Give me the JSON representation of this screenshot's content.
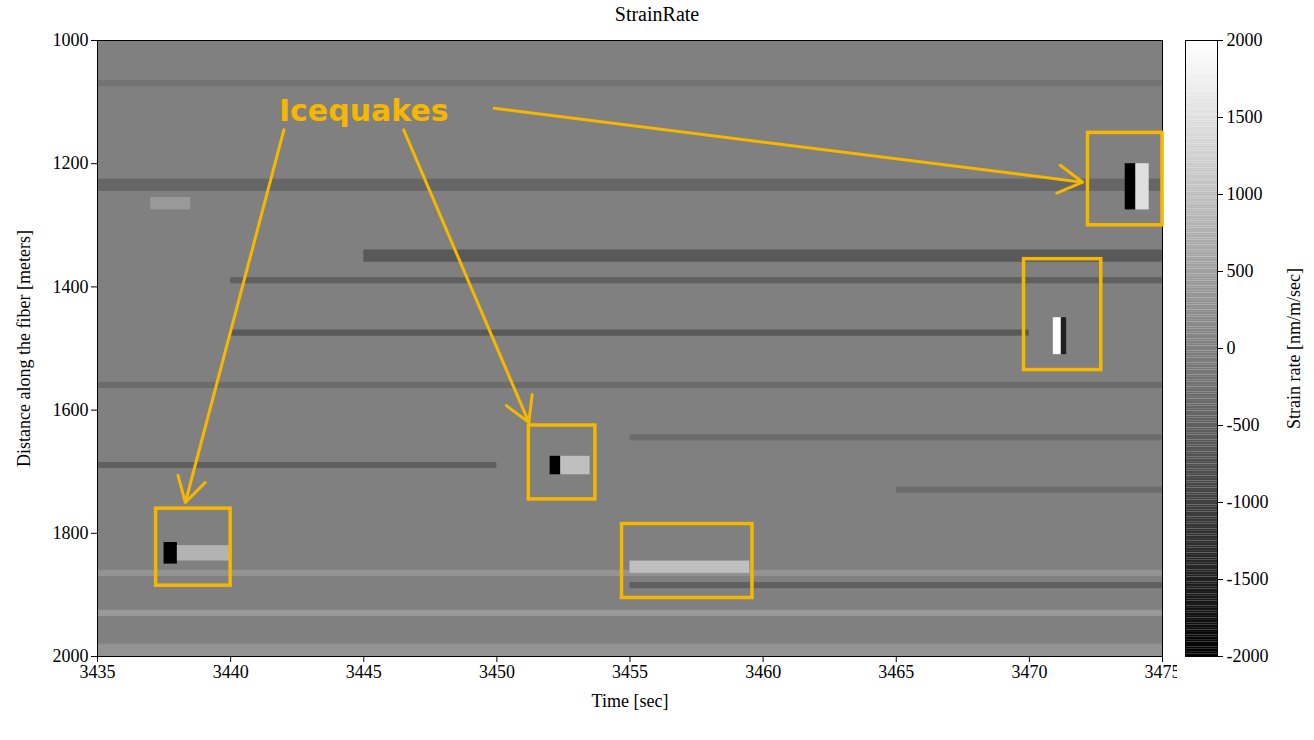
{
  "chart_data": {
    "type": "heatmap",
    "title": "StrainRate",
    "xlabel": "Time [sec]",
    "ylabel": "Distance along the fiber [meters]",
    "xlim": [
      3435,
      3475
    ],
    "xticks": [
      3435,
      3440,
      3445,
      3450,
      3455,
      3460,
      3465,
      3470,
      3475
    ],
    "ylim": [
      2000,
      1000
    ],
    "yticks": [
      1000,
      1200,
      1400,
      1600,
      1800,
      2000
    ],
    "colorbar": {
      "label": "Strain rate [nm/m/sec]",
      "range": [
        -2000,
        2000
      ],
      "ticks": [
        -2000,
        -1500,
        -1000,
        -500,
        0,
        500,
        1000,
        1500,
        2000
      ]
    },
    "cells": [
      {
        "x": [
          3435,
          3475
        ],
        "y": [
          1000,
          2000
        ],
        "value": 0
      },
      {
        "x": [
          3435,
          3475
        ],
        "y": [
          1065,
          1075
        ],
        "value": -200
      },
      {
        "x": [
          3435,
          3475
        ],
        "y": [
          1225,
          1245
        ],
        "value": -400
      },
      {
        "x": [
          3437,
          3438.5
        ],
        "y": [
          1255,
          1275
        ],
        "value": 400
      },
      {
        "x": [
          3445,
          3475
        ],
        "y": [
          1340,
          1360
        ],
        "value": -600
      },
      {
        "x": [
          3440,
          3475
        ],
        "y": [
          1385,
          1395
        ],
        "value": -500
      },
      {
        "x": [
          3440,
          3470
        ],
        "y": [
          1470,
          1480
        ],
        "value": -600
      },
      {
        "x": [
          3435,
          3475
        ],
        "y": [
          1555,
          1565
        ],
        "value": -300
      },
      {
        "x": [
          3455,
          3475
        ],
        "y": [
          1640,
          1650
        ],
        "value": -300
      },
      {
        "x": [
          3435,
          3450
        ],
        "y": [
          1685,
          1695
        ],
        "value": -500
      },
      {
        "x": [
          3465,
          3475
        ],
        "y": [
          1725,
          1735
        ],
        "value": -300
      },
      {
        "x": [
          3435,
          3475
        ],
        "y": [
          1860,
          1870
        ],
        "value": 300
      },
      {
        "x": [
          3455,
          3475
        ],
        "y": [
          1880,
          1890
        ],
        "value": -500
      },
      {
        "x": [
          3435,
          3475
        ],
        "y": [
          1925,
          1935
        ],
        "value": 400
      },
      {
        "x": [
          3435,
          3475
        ],
        "y": [
          1980,
          2000
        ],
        "value": 300
      },
      {
        "x": [
          3437.5,
          3438
        ],
        "y": [
          1815,
          1850
        ],
        "value": -2000
      },
      {
        "x": [
          3438,
          3440
        ],
        "y": [
          1820,
          1845
        ],
        "value": 800
      },
      {
        "x": [
          3452,
          3452.4
        ],
        "y": [
          1675,
          1705
        ],
        "value": -2000
      },
      {
        "x": [
          3452.4,
          3453.5
        ],
        "y": [
          1675,
          1705
        ],
        "value": 1000
      },
      {
        "x": [
          3455,
          3459.5
        ],
        "y": [
          1845,
          1865
        ],
        "value": 1000
      },
      {
        "x": [
          3470.9,
          3471.2
        ],
        "y": [
          1450,
          1510
        ],
        "value": 2000
      },
      {
        "x": [
          3471.2,
          3471.4
        ],
        "y": [
          1450,
          1510
        ],
        "value": -1500
      },
      {
        "x": [
          3473.6,
          3474
        ],
        "y": [
          1200,
          1275
        ],
        "value": -2000
      },
      {
        "x": [
          3474,
          3474.5
        ],
        "y": [
          1200,
          1275
        ],
        "value": 1500
      }
    ],
    "annotations": [
      {
        "text": "Icequakes",
        "x": 3445,
        "y": 1115
      }
    ],
    "boxes": [
      {
        "x": [
          3437.2,
          3440.0
        ],
        "y": [
          1760,
          1885
        ]
      },
      {
        "x": [
          3451.2,
          3453.7
        ],
        "y": [
          1625,
          1745
        ]
      },
      {
        "x": [
          3454.7,
          3459.6
        ],
        "y": [
          1785,
          1905
        ]
      },
      {
        "x": [
          3469.8,
          3472.7
        ],
        "y": [
          1355,
          1535
        ]
      },
      {
        "x": [
          3472.2,
          3475
        ],
        "y": [
          1150,
          1300
        ]
      }
    ],
    "arrows": [
      {
        "from": [
          3442,
          1145
        ],
        "to": [
          3438.3,
          1750
        ]
      },
      {
        "from": [
          3446.5,
          1145
        ],
        "to": [
          3451.2,
          1620
        ]
      },
      {
        "from": [
          3449.9,
          1110
        ],
        "to": [
          3472,
          1230
        ]
      }
    ]
  }
}
